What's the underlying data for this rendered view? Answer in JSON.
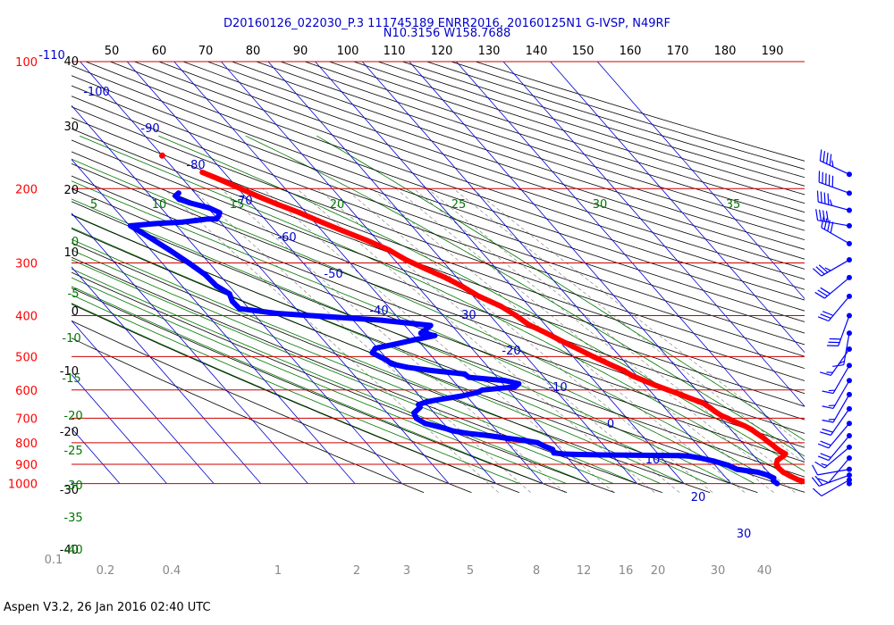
{
  "chart_data": {
    "type": "skew-t",
    "title": "D20160126_022030_P.3 111745189 ENRR2016, 20160125N1 G-IVSP, N49RF",
    "subtitle": "N10.3156 W158.7688",
    "footer": "Aspen V3.2, 26 Jan 2016  02:40 UTC",
    "pressure_ticks": [
      "100",
      "200",
      "300",
      "400",
      "500",
      "600",
      "700",
      "800",
      "900",
      "1000"
    ],
    "pressure_values": [
      100,
      200,
      300,
      400,
      500,
      600,
      700,
      800,
      900,
      1000
    ],
    "top_temp_labels": [
      "-110",
      "50",
      "60",
      "70",
      "80",
      "90",
      "100",
      "110",
      "120",
      "130",
      "140",
      "150",
      "160",
      "170",
      "180",
      "190"
    ],
    "left_height_labels": [
      "40",
      "30",
      "20",
      "10",
      "0",
      "-10",
      "-20",
      "-30",
      "-40"
    ],
    "isotherm_labels": [
      "-100",
      "-90",
      "-80",
      "-70",
      "-60",
      "-50",
      "-40",
      "-30",
      "-20",
      "-10",
      "0",
      "10",
      "20",
      "30"
    ],
    "green_labels": [
      "5",
      "10",
      "15",
      "20",
      "25",
      "30",
      "35",
      "0",
      "-5",
      "-10",
      "-15",
      "-20",
      "-25",
      "-30",
      "-35",
      "-40"
    ],
    "mixing_ratio_labels": [
      "0.1",
      "0.2",
      "0.4",
      "1",
      "2",
      "3",
      "5",
      "8",
      "12",
      "16",
      "20",
      "30",
      "40"
    ],
    "series": [
      {
        "name": "Temperature",
        "color": "#ff0000",
        "points": [
          [
            1000,
            27.5
          ],
          [
            980,
            25.0
          ],
          [
            960,
            24.0
          ],
          [
            940,
            23.2
          ],
          [
            920,
            23.0
          ],
          [
            900,
            23.2
          ],
          [
            880,
            24.2
          ],
          [
            860,
            26.3
          ],
          [
            850,
            27.1
          ],
          [
            840,
            26.6
          ],
          [
            825,
            26.2
          ],
          [
            810,
            26.0
          ],
          [
            795,
            25.6
          ],
          [
            780,
            25.4
          ],
          [
            760,
            24.8
          ],
          [
            745,
            24.4
          ],
          [
            730,
            23.6
          ],
          [
            715,
            22.4
          ],
          [
            700,
            21.4
          ],
          [
            690,
            20.6
          ],
          [
            675,
            20.0
          ],
          [
            660,
            19.6
          ],
          [
            645,
            19.0
          ],
          [
            630,
            17.4
          ],
          [
            615,
            15.8
          ],
          [
            600,
            14.0
          ],
          [
            585,
            12.2
          ],
          [
            570,
            10.6
          ],
          [
            555,
            9.0
          ],
          [
            540,
            8.2
          ],
          [
            520,
            6.2
          ],
          [
            500,
            4.3
          ],
          [
            480,
            2.5
          ],
          [
            460,
            0.5
          ],
          [
            440,
            -1.3
          ],
          [
            420,
            -3.5
          ],
          [
            400,
            -4.5
          ],
          [
            380,
            -6.0
          ],
          [
            360,
            -8.8
          ],
          [
            340,
            -10.6
          ],
          [
            325,
            -12.5
          ],
          [
            310,
            -15.0
          ],
          [
            295,
            -17.5
          ],
          [
            280,
            -19.3
          ],
          [
            265,
            -22.3
          ],
          [
            250,
            -26.0
          ],
          [
            238,
            -29.0
          ],
          [
            228,
            -31.4
          ],
          [
            218,
            -34.5
          ],
          [
            208,
            -37.4
          ],
          [
            200,
            -39.5
          ],
          [
            190,
            -42.3
          ],
          [
            183,
            -44.6
          ]
        ]
      },
      {
        "name": "Dewpoint",
        "color": "#0000ff",
        "points": [
          [
            1000,
            19.8
          ],
          [
            985,
            19.5
          ],
          [
            970,
            20.1
          ],
          [
            955,
            19.4
          ],
          [
            940,
            17.8
          ],
          [
            925,
            13.9
          ],
          [
            905,
            12.8
          ],
          [
            885,
            10.6
          ],
          [
            870,
            8.2
          ],
          [
            860,
            6.0
          ],
          [
            858,
            4.0
          ],
          [
            857,
            -1.5
          ],
          [
            856,
            -7.0
          ],
          [
            855,
            -12.0
          ],
          [
            853,
            -17.0
          ],
          [
            851,
            -20.0
          ],
          [
            846,
            -22.0
          ],
          [
            830,
            -21.6
          ],
          [
            815,
            -22.8
          ],
          [
            800,
            -23.6
          ],
          [
            790,
            -26.1
          ],
          [
            780,
            -29.5
          ],
          [
            770,
            -32.5
          ],
          [
            760,
            -36.7
          ],
          [
            750,
            -39.4
          ],
          [
            740,
            -40.5
          ],
          [
            720,
            -43.9
          ],
          [
            700,
            -44.8
          ],
          [
            680,
            -44.3
          ],
          [
            660,
            -42.0
          ],
          [
            650,
            -41.8
          ],
          [
            640,
            -39.5
          ],
          [
            635,
            -37.6
          ],
          [
            628,
            -34.6
          ],
          [
            620,
            -31.0
          ],
          [
            608,
            -27.0
          ],
          [
            600,
            -25.5
          ],
          [
            590,
            -18.0
          ],
          [
            580,
            -16.6
          ],
          [
            570,
            -19.0
          ],
          [
            560,
            -26.0
          ],
          [
            550,
            -26.3
          ],
          [
            540,
            -32.5
          ],
          [
            530,
            -37.3
          ],
          [
            520,
            -40.0
          ],
          [
            510,
            -40.3
          ],
          [
            490,
            -42.0
          ],
          [
            478,
            -40.5
          ],
          [
            466,
            -35.0
          ],
          [
            456,
            -30.5
          ],
          [
            446,
            -25.5
          ],
          [
            440,
            -28.0
          ],
          [
            430,
            -26.0
          ],
          [
            422,
            -24.5
          ],
          [
            410,
            -34.0
          ],
          [
            400,
            -48.0
          ],
          [
            395,
            -55.0
          ],
          [
            385,
            -62.0
          ],
          [
            370,
            -62.2
          ],
          [
            355,
            -61.4
          ],
          [
            340,
            -62.7
          ],
          [
            320,
            -63.0
          ],
          [
            300,
            -64.3
          ],
          [
            280,
            -66.0
          ],
          [
            260,
            -68.0
          ],
          [
            245,
            -69.8
          ],
          [
            242,
            -64.0
          ],
          [
            240,
            -58.0
          ],
          [
            238,
            -55.0
          ],
          [
            236,
            -52.0
          ],
          [
            236,
            -50.2
          ],
          [
            232,
            -49.2
          ],
          [
            228,
            -48.4
          ],
          [
            222,
            -49.8
          ],
          [
            216,
            -53.0
          ],
          [
            212,
            -54.5
          ],
          [
            208,
            -54.7
          ],
          [
            205,
            -53.5
          ]
        ]
      }
    ],
    "wind_barbs": [
      {
        "pressure": 1000,
        "direction": 230,
        "speed_kt": 0
      },
      {
        "pressure": 980,
        "direction": 240,
        "speed_kt": 10
      },
      {
        "pressure": 955,
        "direction": 250,
        "speed_kt": 20
      },
      {
        "pressure": 925,
        "direction": 260,
        "speed_kt": 10
      },
      {
        "pressure": 870,
        "direction": 220,
        "speed_kt": 10
      },
      {
        "pressure": 820,
        "direction": 230,
        "speed_kt": 15
      },
      {
        "pressure": 770,
        "direction": 220,
        "speed_kt": 20
      },
      {
        "pressure": 720,
        "direction": 220,
        "speed_kt": 20
      },
      {
        "pressure": 665,
        "direction": 215,
        "speed_kt": 20
      },
      {
        "pressure": 615,
        "direction": 210,
        "speed_kt": 15
      },
      {
        "pressure": 570,
        "direction": 210,
        "speed_kt": 15
      },
      {
        "pressure": 525,
        "direction": 210,
        "speed_kt": 15
      },
      {
        "pressure": 480,
        "direction": 215,
        "speed_kt": 15
      },
      {
        "pressure": 440,
        "direction": 190,
        "speed_kt": 15
      },
      {
        "pressure": 400,
        "direction": 200,
        "speed_kt": 30
      },
      {
        "pressure": 360,
        "direction": 220,
        "speed_kt": 30
      },
      {
        "pressure": 325,
        "direction": 230,
        "speed_kt": 30
      },
      {
        "pressure": 295,
        "direction": 240,
        "speed_kt": 35
      },
      {
        "pressure": 270,
        "direction": 300,
        "speed_kt": 40
      },
      {
        "pressure": 245,
        "direction": 280,
        "speed_kt": 40
      },
      {
        "pressure": 225,
        "direction": 285,
        "speed_kt": 45
      },
      {
        "pressure": 205,
        "direction": 290,
        "speed_kt": 50
      },
      {
        "pressure": 185,
        "direction": 295,
        "speed_kt": 45
      }
    ],
    "isolated_point": {
      "pressure": 167,
      "temperature": -50.0,
      "color": "#ff0000"
    },
    "colors": {
      "isobar": "#cc0000",
      "isotherm": "#0000cc",
      "dry_adiabat": "#000000",
      "moist_adiabat": "#007700",
      "mixing_ratio": "#777777",
      "pressure_label": "#ff0000",
      "wind": "#0000ff"
    }
  }
}
